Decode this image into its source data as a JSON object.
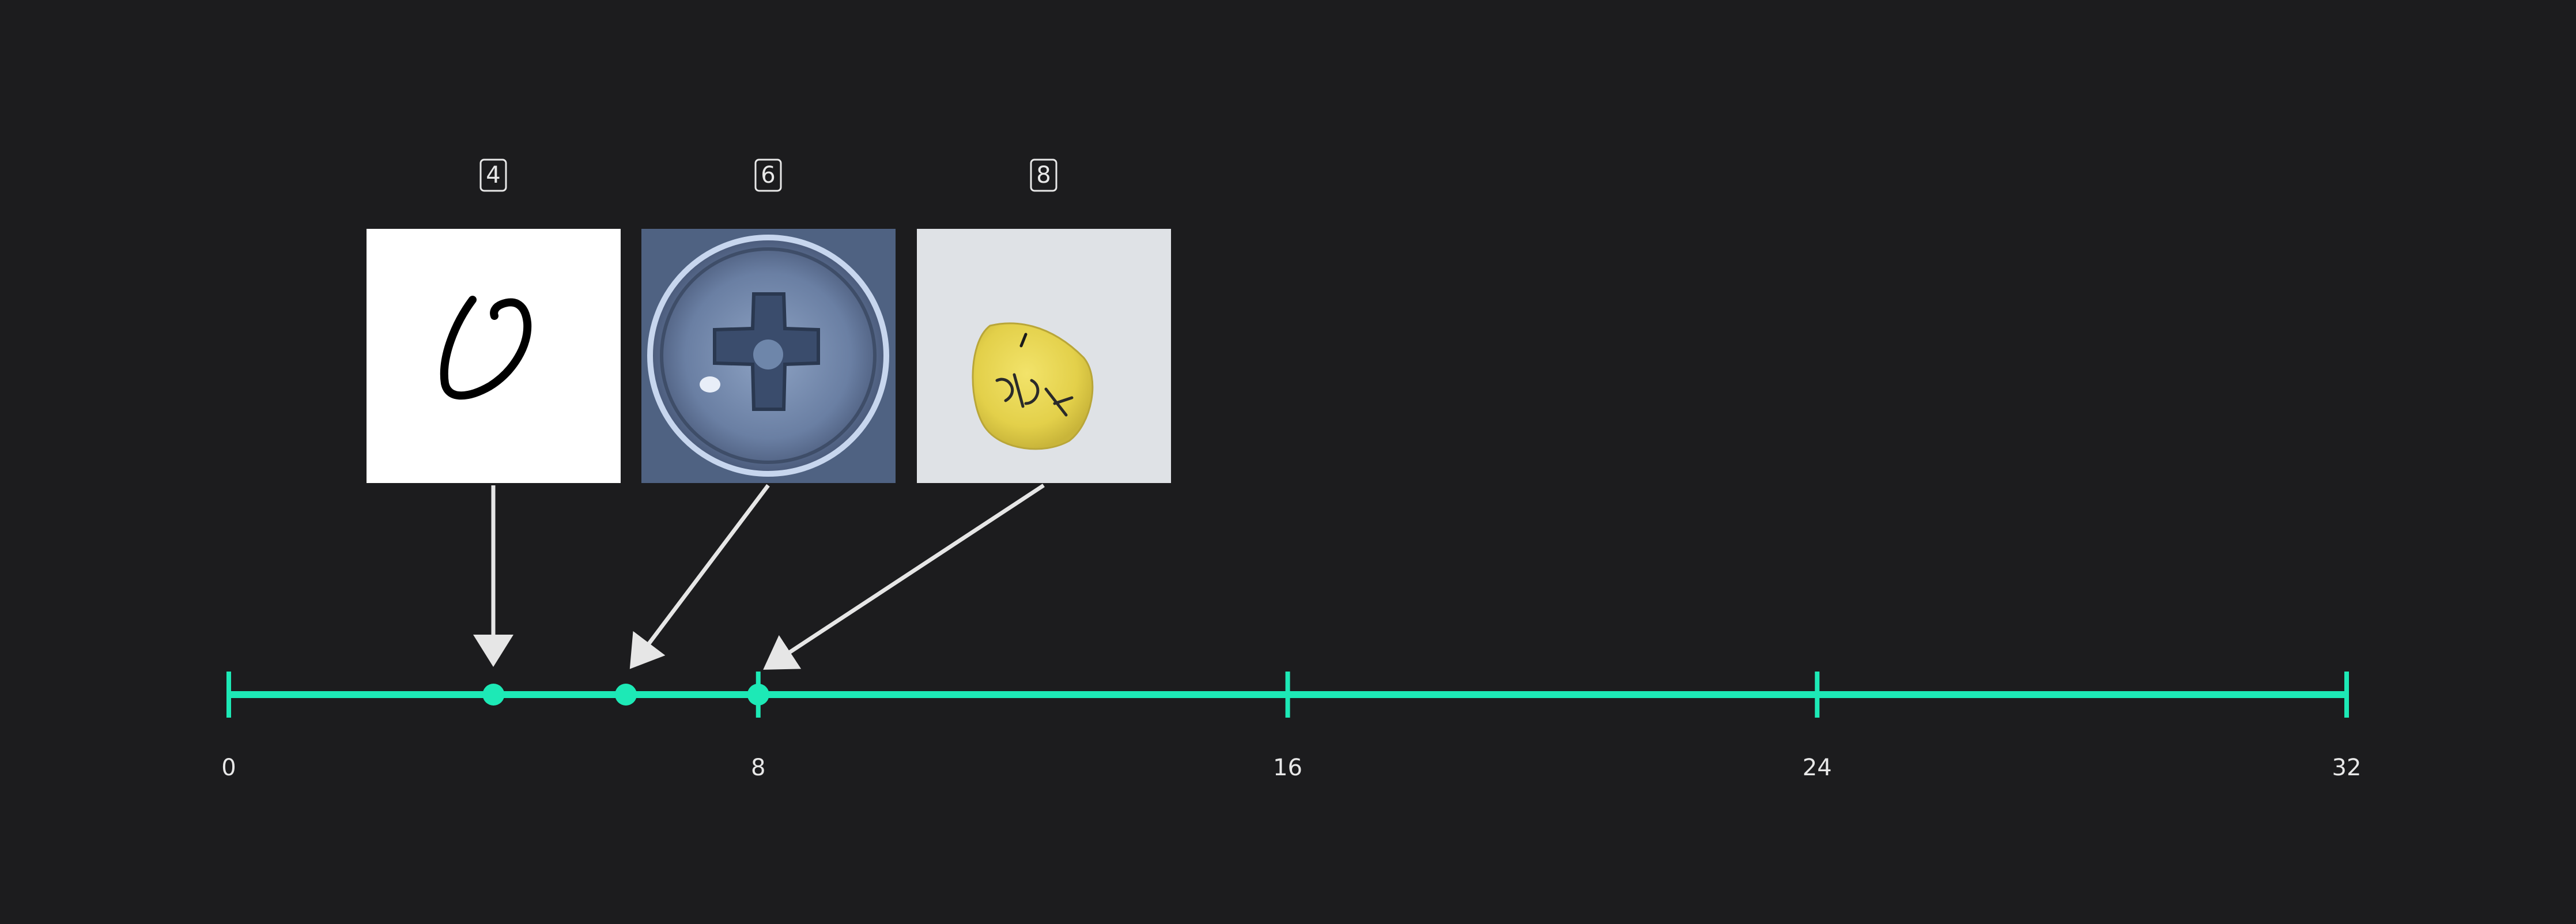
{
  "axis": {
    "min": 0,
    "max": 32,
    "ticks": [
      {
        "value": 0,
        "label": "0"
      },
      {
        "value": 8,
        "label": "8"
      },
      {
        "value": 16,
        "label": "16"
      },
      {
        "value": 24,
        "label": "24"
      },
      {
        "value": 32,
        "label": "32"
      }
    ]
  },
  "colors": {
    "background": "#1c1c1e",
    "axis": "#1de9b6",
    "arrow": "#e6e6e6",
    "text": "#e8e8e8"
  },
  "items": [
    {
      "value": 4,
      "label": "4",
      "image": "handwritten-zero-digit"
    },
    {
      "value": 6,
      "label": "6",
      "image": "phillips-screw-head"
    },
    {
      "value": 8,
      "label": "8",
      "image": "yellow-pill-with-ink-marks"
    }
  ]
}
